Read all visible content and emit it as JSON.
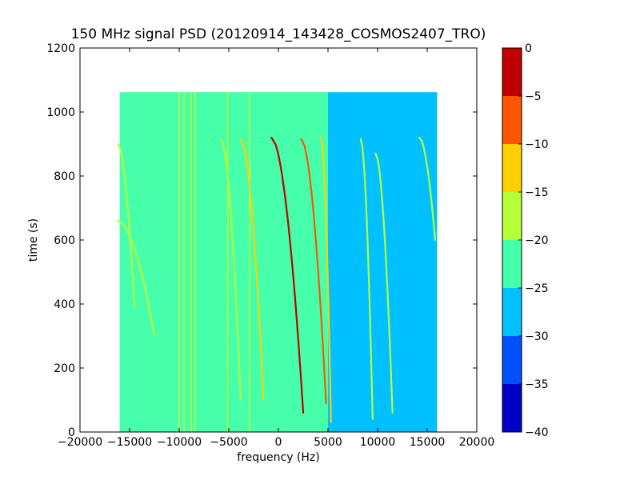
{
  "chart_data": {
    "type": "heatmap",
    "title": "150 MHz signal PSD (20120914_143428_COSMOS2407_TRO)",
    "xlabel": "frequency (Hz)",
    "ylabel": "time (s)",
    "xlim": [
      -20000,
      20000
    ],
    "ylim": [
      0,
      1200
    ],
    "xticks": [
      -20000,
      -15000,
      -10000,
      -5000,
      0,
      5000,
      10000,
      15000,
      20000
    ],
    "xtick_labels": [
      "−20000",
      "−15000",
      "−10000",
      "−5000",
      "0",
      "5000",
      "10000",
      "15000",
      "20000"
    ],
    "yticks": [
      0,
      200,
      400,
      600,
      800,
      1000,
      1200
    ],
    "ytick_labels": [
      "0",
      "200",
      "400",
      "600",
      "800",
      "1000",
      "1200"
    ],
    "data_extent": {
      "freq": [
        -16000,
        16000
      ],
      "time": [
        0,
        1062
      ]
    },
    "background_levels": [
      {
        "freq_range": [
          -16000,
          5000
        ],
        "level": -22.5
      },
      {
        "freq_range": [
          5000,
          16000
        ],
        "level": -27.5
      }
    ],
    "vertical_lines": [
      {
        "freq": -10000,
        "level": -17
      },
      {
        "freq": -9500,
        "level": -17
      },
      {
        "freq": -8800,
        "level": -17
      },
      {
        "freq": -8400,
        "level": -17
      },
      {
        "freq": -5100,
        "level": -18
      },
      {
        "freq": -2900,
        "level": -18
      }
    ],
    "doppler_traces": [
      {
        "start_freq": -16200,
        "shift_freq": -14500,
        "t_top": 900,
        "t_bottom": 390,
        "level": -17
      },
      {
        "start_freq": -16200,
        "shift_freq": -12500,
        "t_top": 660,
        "t_bottom": 300,
        "level": -17
      },
      {
        "start_freq": -5800,
        "shift_freq": -3800,
        "t_top": 915,
        "t_bottom": 100,
        "level": -17
      },
      {
        "start_freq": -3800,
        "shift_freq": -1500,
        "t_top": 915,
        "t_bottom": 100,
        "level": -14
      },
      {
        "start_freq": -700,
        "shift_freq": 2500,
        "t_top": 920,
        "t_bottom": 60,
        "level": -5
      },
      {
        "start_freq": 2300,
        "shift_freq": 4800,
        "t_top": 915,
        "t_bottom": 90,
        "level": -7
      },
      {
        "start_freq": 4300,
        "shift_freq": 5300,
        "t_top": 920,
        "t_bottom": 30,
        "level": -12
      },
      {
        "start_freq": 8300,
        "shift_freq": 9500,
        "t_top": 915,
        "t_bottom": 40,
        "level": -17
      },
      {
        "start_freq": 9800,
        "shift_freq": 11500,
        "t_top": 870,
        "t_bottom": 60,
        "level": -17
      },
      {
        "start_freq": 14200,
        "shift_freq": 15800,
        "t_top": 920,
        "t_bottom": 600,
        "level": -17
      }
    ],
    "colorbar": {
      "range": [
        -40,
        0
      ],
      "ticks": [
        0,
        -5,
        -10,
        -15,
        -20,
        -25,
        -30,
        -35,
        -40
      ],
      "tick_labels": [
        "0",
        "−5",
        "−10",
        "−15",
        "−20",
        "−25",
        "−30",
        "−35",
        "−40"
      ],
      "bands": [
        {
          "from": -5,
          "to": 0,
          "color": "#c00000"
        },
        {
          "from": -10,
          "to": -5,
          "color": "#ff5500"
        },
        {
          "from": -15,
          "to": -10,
          "color": "#ffd000"
        },
        {
          "from": -20,
          "to": -15,
          "color": "#b4ff3c"
        },
        {
          "from": -25,
          "to": -20,
          "color": "#46ffaa"
        },
        {
          "from": -30,
          "to": -25,
          "color": "#00c0ff"
        },
        {
          "from": -35,
          "to": -30,
          "color": "#0050ff"
        },
        {
          "from": -40,
          "to": -35,
          "color": "#0000c8"
        }
      ]
    },
    "legend": "none",
    "grid": false
  }
}
